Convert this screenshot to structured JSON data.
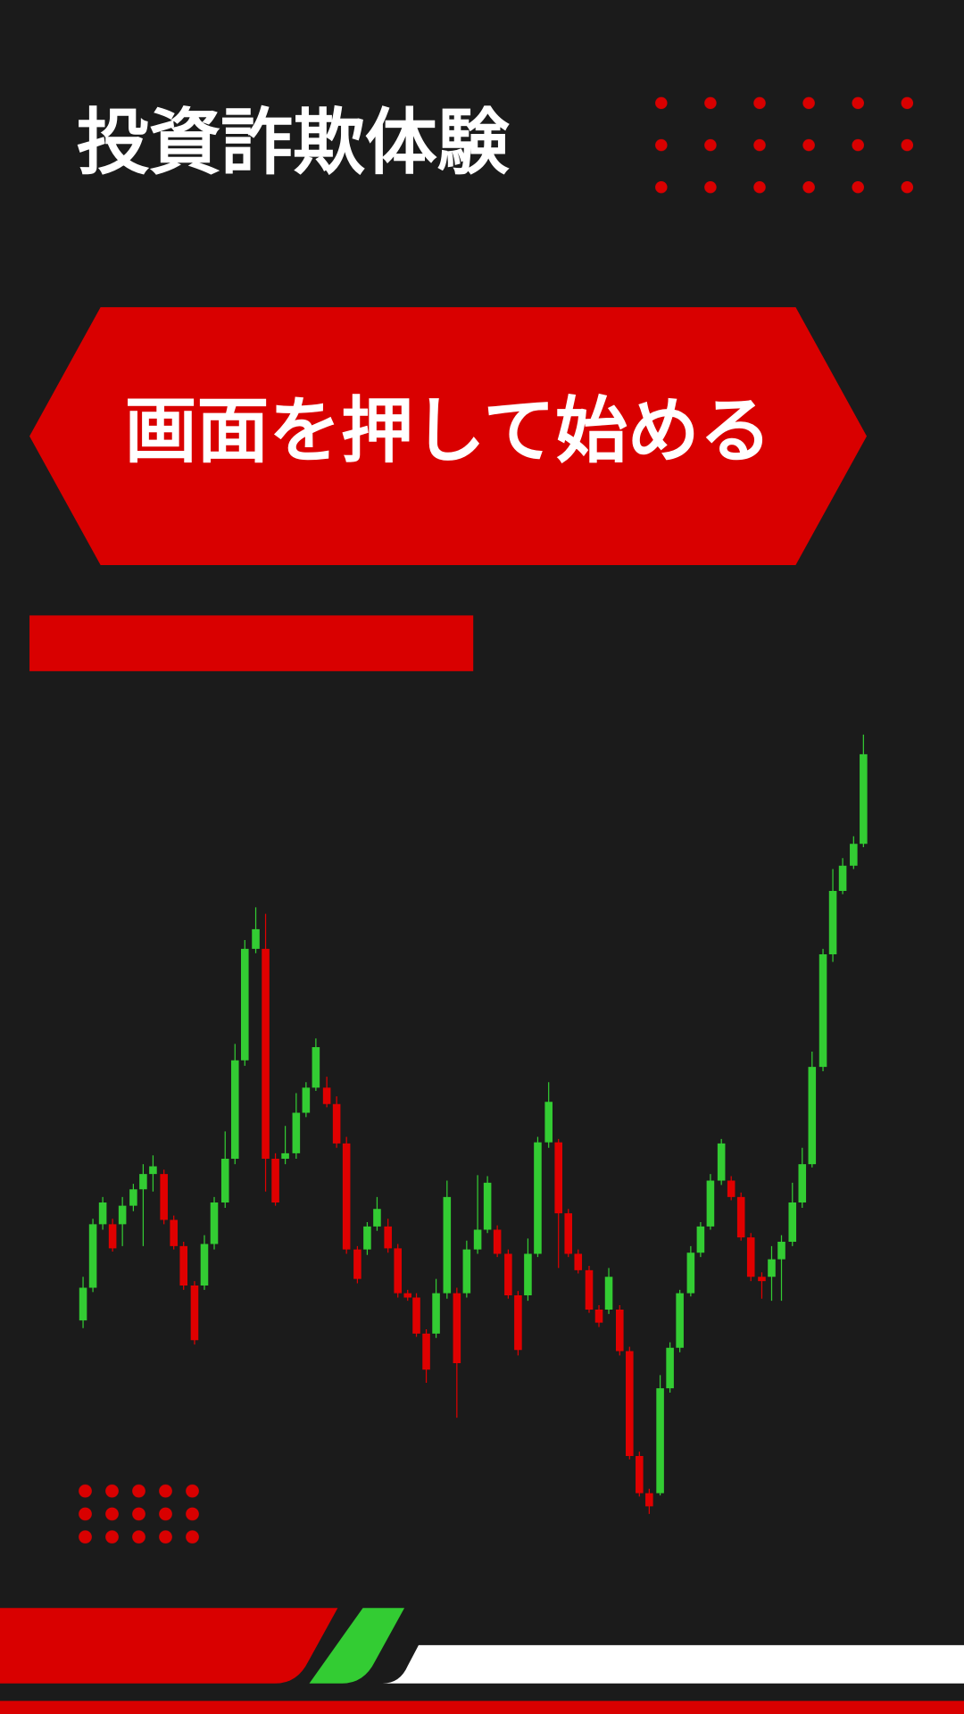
{
  "title": "投資詐欺体験",
  "start_button": {
    "label": "画面を押して始める"
  }
}
